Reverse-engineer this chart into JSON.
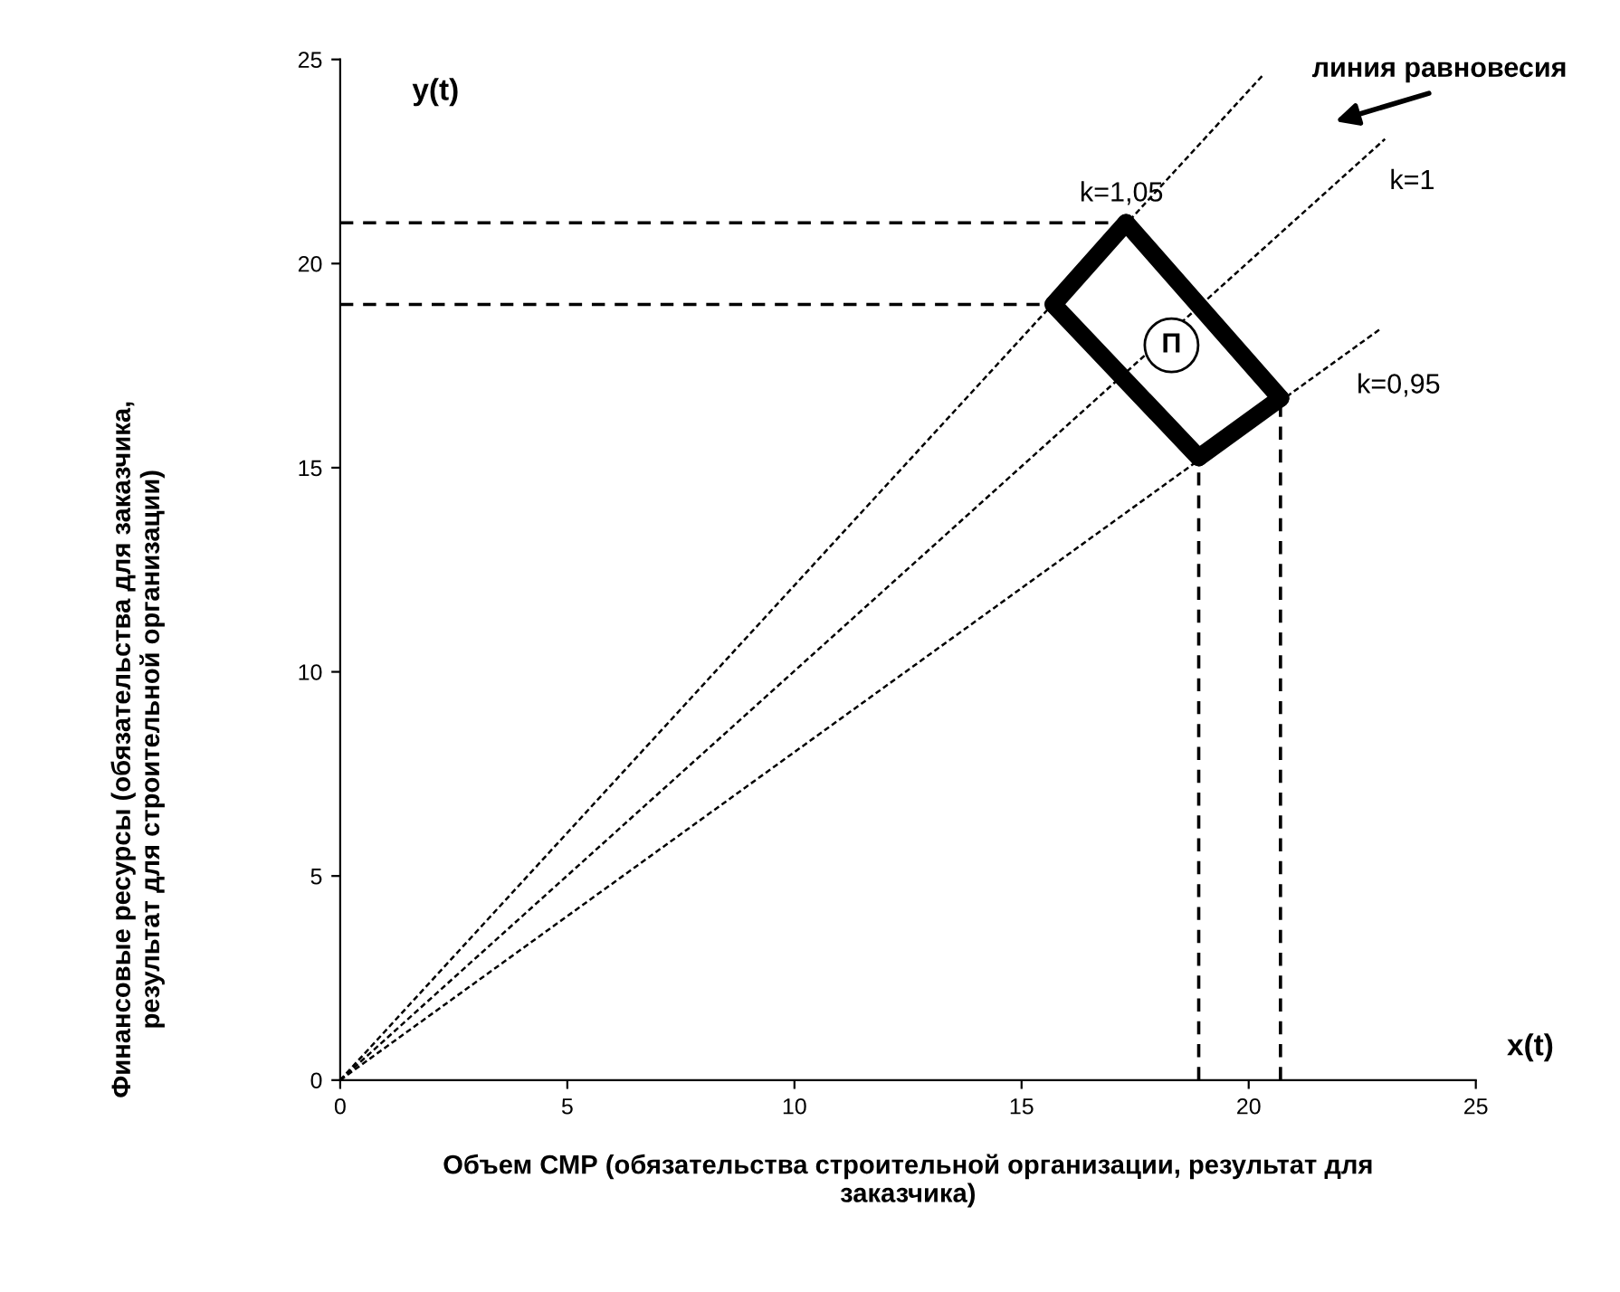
{
  "chart_data": {
    "type": "line",
    "xlabel": "Объем СМР (обязательства строительной организации, результат для\nзаказчика)",
    "xlim": [
      0,
      25
    ],
    "ylim": [
      0,
      25
    ],
    "xticks": [
      0,
      5,
      10,
      15,
      20,
      25
    ],
    "yticks": [
      0,
      5,
      10,
      15,
      20,
      25
    ],
    "grid": false,
    "legend": false,
    "series": [
      {
        "color": "#000000",
        "line_style": "dotted",
        "x": [
          0,
          20.3
        ],
        "values": [
          0,
          24.6
        ]
      },
      {
        "color": "#000000",
        "line_style": "dotted",
        "x": [
          0,
          23.0
        ],
        "values": [
          0,
          23.05
        ]
      },
      {
        "color": "#000000",
        "line_style": "dotted",
        "x": [
          0,
          22.9
        ],
        "values": [
          0,
          18.4
        ]
      },
      {
        "color": "#000000",
        "line_style": "dashed",
        "x": [
          0,
          17.3
        ],
        "values": [
          21.0,
          21.0
        ]
      },
      {
        "color": "#000000",
        "line_style": "dashed",
        "x": [
          0,
          15.7
        ],
        "values": [
          19.0,
          19.0
        ]
      },
      {
        "color": "#000000",
        "line_style": "dashed",
        "x": [
          18.9,
          18.9
        ],
        "values": [
          0,
          15.25
        ]
      },
      {
        "color": "#000000",
        "line_style": "dashed",
        "x": [
          20.7,
          20.7
        ],
        "values": [
          0,
          16.7
        ]
      },
      {
        "color": "#000000",
        "line_style": "solid",
        "x": [
          15.7,
          17.3
        ],
        "values": [
          19.0,
          21.0
        ]
      },
      {
        "color": "#000000",
        "line_style": "solid",
        "x": [
          17.3,
          20.7
        ],
        "values": [
          21.0,
          16.7
        ]
      },
      {
        "color": "#000000",
        "line_style": "solid",
        "x": [
          18.9,
          20.7
        ],
        "values": [
          15.25,
          16.7
        ]
      },
      {
        "color": "#000000",
        "line_style": "solid",
        "x": [
          15.7,
          18.9
        ],
        "values": [
          19.0,
          15.25
        ]
      }
    ],
    "annotations": [
      "y(t)",
      "x(t)",
      "k=1,05",
      "k=1",
      "k=0,95",
      "П",
      "линия равновесия",
      "Финансовые ресурсы (обязательства для заказчика,\nрезультат для строительной организации)"
    ]
  }
}
